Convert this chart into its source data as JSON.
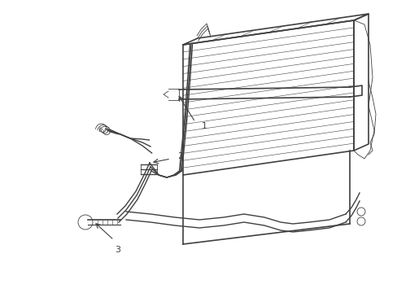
{
  "background_color": "#ffffff",
  "line_color": "#404040",
  "lw_main": 1.2,
  "lw_tube": 1.0,
  "lw_thin": 0.6,
  "label_fontsize": 8,
  "fig_width": 4.89,
  "fig_height": 3.6,
  "dpi": 100
}
